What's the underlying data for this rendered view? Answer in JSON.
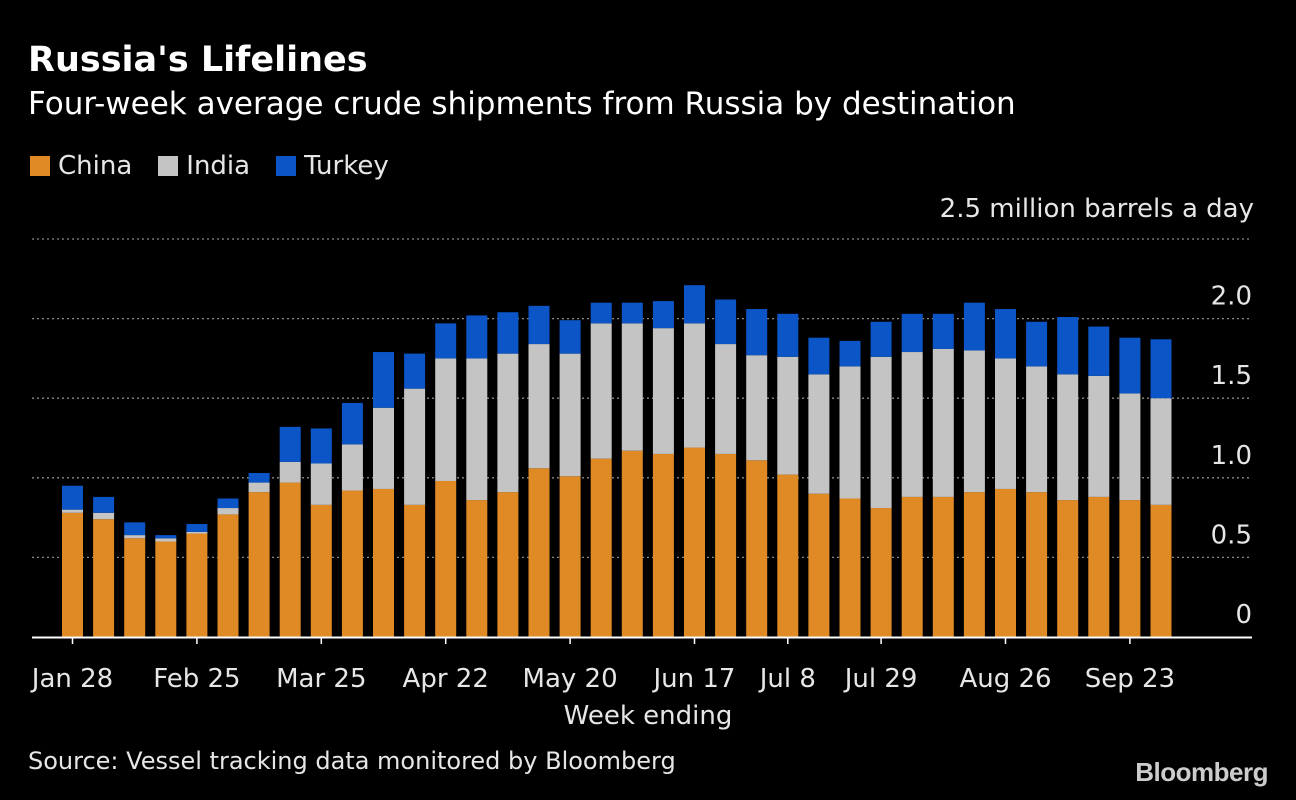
{
  "title": "Russia's Lifelines",
  "subtitle": "Four-week average crude shipments from Russia by destination",
  "legend": [
    {
      "label": "China",
      "color": "#e08a25"
    },
    {
      "label": "India",
      "color": "#c4c4c4"
    },
    {
      "label": "Turkey",
      "color": "#0b55c7"
    }
  ],
  "unit_label": "2.5 million barrels a day",
  "source": "Source: Vessel tracking data monitored by Bloomberg",
  "brand": "Bloomberg",
  "chart_data": {
    "type": "bar",
    "stacked": true,
    "title": "Russia's Lifelines",
    "subtitle": "Four-week average crude shipments from Russia by destination",
    "xlabel": "Week ending",
    "ylabel": "million barrels a day",
    "ylim": [
      0,
      2.5
    ],
    "yticks": [
      {
        "value": 0,
        "label": "0"
      },
      {
        "value": 0.5,
        "label": "0.5"
      },
      {
        "value": 1.0,
        "label": "1.0"
      },
      {
        "value": 1.5,
        "label": "1.5"
      },
      {
        "value": 2.0,
        "label": "2.0"
      },
      {
        "value": 2.5,
        "label": "2.5"
      }
    ],
    "xticks": [
      {
        "index": 0,
        "label": "Jan 28"
      },
      {
        "index": 4,
        "label": "Feb 25"
      },
      {
        "index": 8,
        "label": "Mar 25"
      },
      {
        "index": 12,
        "label": "Apr 22"
      },
      {
        "index": 16,
        "label": "May 20"
      },
      {
        "index": 20,
        "label": "Jun 17"
      },
      {
        "index": 23,
        "label": "Jul 8"
      },
      {
        "index": 26,
        "label": "Jul 29"
      },
      {
        "index": 30,
        "label": "Aug 26"
      },
      {
        "index": 34,
        "label": "Sep 23"
      }
    ],
    "categories": [
      "Jan 28",
      "Feb 4",
      "Feb 11",
      "Feb 18",
      "Feb 25",
      "Mar 4",
      "Mar 11",
      "Mar 18",
      "Mar 25",
      "Apr 1",
      "Apr 8",
      "Apr 15",
      "Apr 22",
      "Apr 29",
      "May 6",
      "May 13",
      "May 20",
      "May 27",
      "Jun 3",
      "Jun 10",
      "Jun 17",
      "Jun 24",
      "Jul 1",
      "Jul 8",
      "Jul 15",
      "Jul 22",
      "Jul 29",
      "Aug 5",
      "Aug 12",
      "Aug 19",
      "Aug 26",
      "Sep 2",
      "Sep 9",
      "Sep 16",
      "Sep 23",
      "Sep 30"
    ],
    "series": [
      {
        "name": "China",
        "color": "#e08a25",
        "values": [
          0.78,
          0.74,
          0.62,
          0.6,
          0.65,
          0.77,
          0.91,
          0.97,
          0.83,
          0.92,
          0.93,
          0.83,
          0.98,
          0.86,
          0.91,
          1.06,
          1.01,
          1.12,
          1.17,
          1.15,
          1.19,
          1.15,
          1.11,
          1.02,
          0.9,
          0.87,
          0.81,
          0.88,
          0.88,
          0.91,
          0.93,
          0.91,
          0.86,
          0.88,
          0.86,
          0.83
        ]
      },
      {
        "name": "India",
        "color": "#c4c4c4",
        "values": [
          0.02,
          0.04,
          0.02,
          0.02,
          0.01,
          0.04,
          0.06,
          0.13,
          0.26,
          0.29,
          0.51,
          0.73,
          0.77,
          0.89,
          0.87,
          0.78,
          0.77,
          0.85,
          0.8,
          0.79,
          0.78,
          0.69,
          0.66,
          0.74,
          0.75,
          0.83,
          0.95,
          0.91,
          0.93,
          0.89,
          0.82,
          0.79,
          0.79,
          0.76,
          0.67,
          0.67
        ]
      },
      {
        "name": "Turkey",
        "color": "#0b55c7",
        "values": [
          0.15,
          0.1,
          0.08,
          0.02,
          0.05,
          0.06,
          0.06,
          0.22,
          0.22,
          0.26,
          0.35,
          0.22,
          0.22,
          0.27,
          0.26,
          0.24,
          0.21,
          0.13,
          0.13,
          0.17,
          0.24,
          0.28,
          0.29,
          0.27,
          0.23,
          0.16,
          0.22,
          0.24,
          0.22,
          0.3,
          0.31,
          0.28,
          0.36,
          0.31,
          0.35,
          0.37
        ]
      }
    ]
  }
}
